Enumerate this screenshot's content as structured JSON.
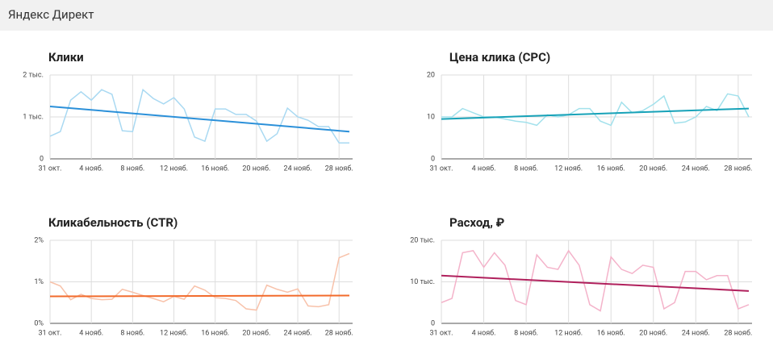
{
  "header": {
    "title": "Яндекс Директ"
  },
  "chart_data": [
    {
      "type": "line",
      "title": "Клики",
      "categories": [
        "31 окт.",
        null,
        null,
        null,
        "4 нояб.",
        null,
        null,
        null,
        "8 нояб.",
        null,
        null,
        null,
        "12 нояб.",
        null,
        null,
        null,
        "16 нояб.",
        null,
        null,
        null,
        "20 нояб.",
        null,
        null,
        null,
        "24 нояб.",
        null,
        null,
        null,
        "28 нояб.",
        null
      ],
      "series": [
        {
          "color": "#a9d9f2",
          "values": [
            540,
            650,
            1400,
            1600,
            1400,
            1650,
            1540,
            670,
            650,
            1650,
            1440,
            1310,
            1460,
            1190,
            520,
            420,
            1190,
            1190,
            1060,
            1060,
            900,
            420,
            600,
            1210,
            1000,
            920,
            770,
            770,
            380,
            380
          ]
        }
      ],
      "trend": [
        1250,
        650
      ],
      "trend_color": "#2b90d9",
      "ylim": [
        0,
        2000
      ],
      "yticks": [
        0,
        {
          "value": 1000,
          "label": "1 тыс."
        },
        {
          "value": 2000,
          "label": "2 тыс."
        }
      ],
      "grid": true
    },
    {
      "type": "line",
      "title": "Цена клика (CPC)",
      "categories": [
        "31 окт.",
        null,
        null,
        null,
        "4 нояб.",
        null,
        null,
        null,
        "8 нояб.",
        null,
        null,
        null,
        "12 нояб.",
        null,
        null,
        null,
        "16 нояб.",
        null,
        null,
        null,
        "20 нояб.",
        null,
        null,
        null,
        "24 нояб.",
        null,
        null,
        null,
        "28 нояб.",
        null
      ],
      "series": [
        {
          "color": "#a3e1ec",
          "values": [
            10,
            10,
            12,
            11,
            10,
            10,
            9.5,
            9,
            8.7,
            8,
            10.5,
            10,
            10.5,
            12,
            12,
            9,
            8,
            13.5,
            11,
            11.5,
            13,
            15,
            8.5,
            8.8,
            10,
            12.5,
            11.5,
            15.5,
            15,
            10
          ]
        }
      ],
      "trend": [
        9.5,
        12
      ],
      "trend_color": "#17a2b8",
      "ylim": [
        0,
        20
      ],
      "yticks": [
        0,
        10,
        20
      ],
      "grid": true
    },
    {
      "type": "line",
      "title": "Кликабельность (CTR)",
      "categories": [
        "31 окт.",
        null,
        null,
        null,
        "4 нояб.",
        null,
        null,
        null,
        "8 нояб.",
        null,
        null,
        null,
        "12 нояб.",
        null,
        null,
        null,
        "16 нояб.",
        null,
        null,
        null,
        "20 нояб.",
        null,
        null,
        null,
        "24 нояб.",
        null,
        null,
        null,
        "28 нояб.",
        null
      ],
      "series": [
        {
          "color": "#f8c2aa",
          "values": [
            1.0,
            0.9,
            0.57,
            0.7,
            0.6,
            0.57,
            0.58,
            0.82,
            0.75,
            0.67,
            0.6,
            0.52,
            0.65,
            0.58,
            0.9,
            0.8,
            0.62,
            0.6,
            0.55,
            0.35,
            0.32,
            0.92,
            0.82,
            0.75,
            0.83,
            0.42,
            0.4,
            0.45,
            1.58,
            1.68
          ]
        }
      ],
      "trend": [
        0.65,
        0.67
      ],
      "trend_color": "#f26b2c",
      "ylim": [
        0,
        2
      ],
      "yticks": [
        {
          "value": 0,
          "label": "0%"
        },
        {
          "value": 1,
          "label": "1%"
        },
        {
          "value": 2,
          "label": "2%"
        }
      ],
      "grid": true
    },
    {
      "type": "line",
      "title": "Расход, ₽",
      "categories": [
        "31 окт.",
        null,
        null,
        null,
        "4 нояб.",
        null,
        null,
        null,
        "8 нояб.",
        null,
        null,
        null,
        "12 нояб.",
        null,
        null,
        null,
        "16 нояб.",
        null,
        null,
        null,
        "20 нояб.",
        null,
        null,
        null,
        "24 нояб.",
        null,
        null,
        null,
        "28 нояб.",
        null
      ],
      "series": [
        {
          "color": "#f4b3ca",
          "values": [
            5000,
            6000,
            17000,
            17500,
            13500,
            17000,
            14000,
            5500,
            4500,
            16500,
            13500,
            13000,
            17500,
            14000,
            4500,
            3000,
            16000,
            13000,
            12000,
            14000,
            13500,
            3500,
            5000,
            12500,
            12500,
            10500,
            11500,
            11500,
            3500,
            4500
          ]
        }
      ],
      "trend": [
        11500,
        7800
      ],
      "trend_color": "#b0205c",
      "ylim": [
        0,
        20000
      ],
      "yticks": [
        0,
        {
          "value": 10000,
          "label": "10 тыс."
        },
        {
          "value": 20000,
          "label": "20 тыс."
        }
      ],
      "grid": true
    }
  ]
}
